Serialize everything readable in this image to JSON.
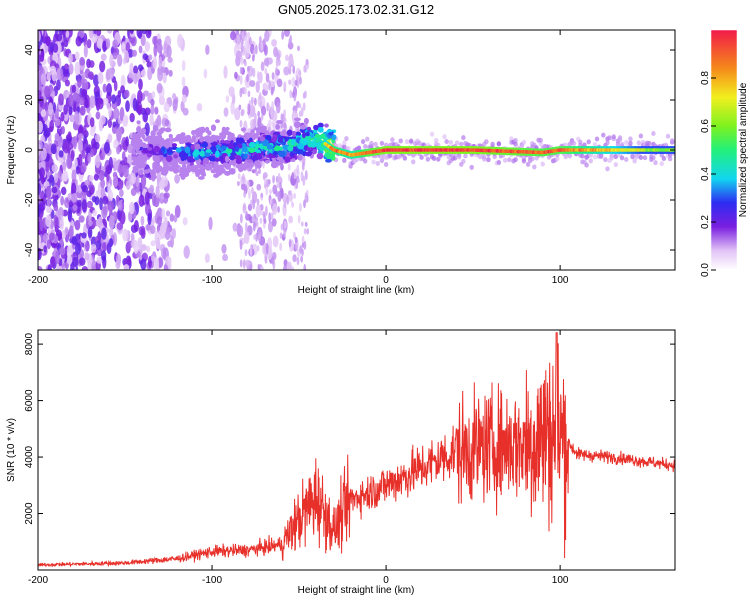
{
  "title": "GN05.2025.173.02.31.G12",
  "chart_data": [
    {
      "type": "heatmap",
      "xlabel": "Height of straight line (km)",
      "ylabel": "Frequency (Hz)",
      "xlim": [
        -200,
        166
      ],
      "ylim": [
        -48,
        48
      ],
      "x_ticks": [
        -200,
        -100,
        0,
        100
      ],
      "y_ticks": [
        -40,
        -20,
        0,
        20,
        40
      ],
      "colorbar": {
        "label": "Normalized spectral amplitude",
        "range": [
          0,
          1
        ],
        "ticks": [
          "0.0",
          "0.2",
          "0.4",
          "0.6",
          "0.8"
        ]
      },
      "ridge": [
        {
          "x": -140,
          "y": 0,
          "amp": 0.3
        },
        {
          "x": -110,
          "y": -1,
          "amp": 0.45
        },
        {
          "x": -80,
          "y": 0,
          "amp": 0.5
        },
        {
          "x": -55,
          "y": 2,
          "amp": 0.55
        },
        {
          "x": -40,
          "y": 5,
          "amp": 0.6
        },
        {
          "x": -30,
          "y": 0,
          "amp": 0.85
        },
        {
          "x": -20,
          "y": -2,
          "amp": 0.8
        },
        {
          "x": -10,
          "y": -1,
          "amp": 0.9
        },
        {
          "x": 0,
          "y": 0,
          "amp": 0.95
        },
        {
          "x": 50,
          "y": 0,
          "amp": 0.95
        },
        {
          "x": 90,
          "y": -1,
          "amp": 0.9
        },
        {
          "x": 100,
          "y": 0,
          "amp": 0.9
        },
        {
          "x": 166,
          "y": 0,
          "amp": 0.55
        }
      ]
    },
    {
      "type": "line",
      "xlabel": "Height of straight line (km)",
      "ylabel": "SNR (10 * v/v)",
      "xlim": [
        -200,
        166
      ],
      "ylim": [
        0,
        8500
      ],
      "x_ticks": [
        -200,
        -100,
        0,
        100
      ],
      "y_ticks": [
        2000,
        4000,
        6000,
        8000
      ],
      "series": [
        {
          "color": "#e8302a",
          "envelope": [
            {
              "x": -200,
              "y": 180
            },
            {
              "x": -150,
              "y": 250
            },
            {
              "x": -120,
              "y": 400
            },
            {
              "x": -100,
              "y": 650
            },
            {
              "x": -80,
              "y": 700
            },
            {
              "x": -60,
              "y": 900
            },
            {
              "x": -50,
              "y": 1800
            },
            {
              "x": -40,
              "y": 2600
            },
            {
              "x": -30,
              "y": 1400
            },
            {
              "x": -20,
              "y": 2500
            },
            {
              "x": 0,
              "y": 3000
            },
            {
              "x": 20,
              "y": 3600
            },
            {
              "x": 40,
              "y": 4200
            },
            {
              "x": 60,
              "y": 4400
            },
            {
              "x": 80,
              "y": 4500
            },
            {
              "x": 98,
              "y": 5000
            },
            {
              "x": 110,
              "y": 4100
            },
            {
              "x": 130,
              "y": 4000
            },
            {
              "x": 166,
              "y": 3700
            }
          ],
          "peak": {
            "x": 98,
            "y": 8400
          }
        }
      ]
    }
  ]
}
